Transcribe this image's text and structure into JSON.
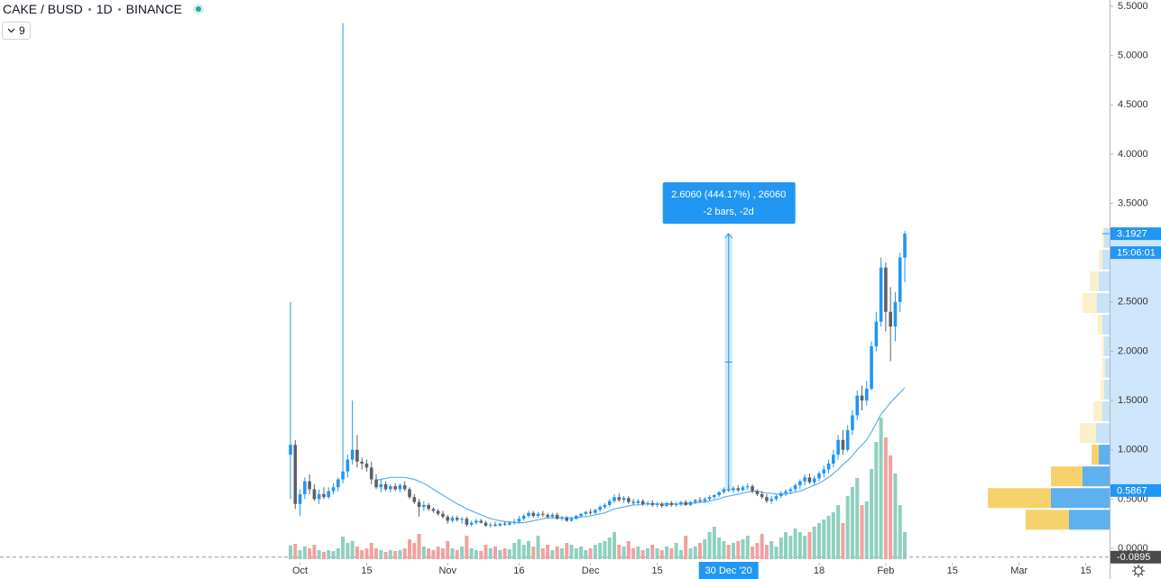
{
  "chart_data": {
    "type": "candlestick",
    "header": {
      "symbol": "CAKE / BUSD",
      "interval": "1D",
      "exchange": "BINANCE"
    },
    "indicator": {
      "name": "9",
      "color": "#5eb0ef"
    },
    "xlim": [
      "2020-07-30",
      "2021-03-20"
    ],
    "ylim": [
      0,
      5.5
    ],
    "yticks": [
      {
        "value": 0,
        "label": "0.0000"
      },
      {
        "value": 0.5,
        "label": "0.5000"
      },
      {
        "value": 1,
        "label": "1.0000"
      },
      {
        "value": 1.5,
        "label": "1.5000"
      },
      {
        "value": 2,
        "label": "2.0000"
      },
      {
        "value": 2.5,
        "label": "2.5000"
      },
      {
        "value": 3,
        "label": "3.0000"
      },
      {
        "value": 3.5,
        "label": "3.5000"
      },
      {
        "value": 4,
        "label": "4.0000"
      },
      {
        "value": 4.5,
        "label": "4.5000"
      },
      {
        "value": 5,
        "label": "5.0000"
      },
      {
        "value": 5.5,
        "label": "5.5000"
      }
    ],
    "xticks": [
      {
        "value": "2020-10-01",
        "label": "Oct"
      },
      {
        "value": "2020-10-15",
        "label": "15"
      },
      {
        "value": "2020-11-01",
        "label": "Nov"
      },
      {
        "value": "2020-11-16",
        "label": "16"
      },
      {
        "value": "2020-12-01",
        "label": "Dec"
      },
      {
        "value": "2020-12-15",
        "label": "15"
      },
      {
        "value": "2021-01-18",
        "label": "18"
      },
      {
        "value": "2021-02-01",
        "label": "Feb"
      },
      {
        "value": "2021-02-15",
        "label": "15"
      },
      {
        "value": "2021-03-01",
        "label": "Mar"
      },
      {
        "value": "2021-03-15",
        "label": "15"
      }
    ],
    "up_color": "#2196f3",
    "down_color": "#5d606b",
    "volume_up_color": "#8ed0bf",
    "volume_down_color": "#f1a1a0",
    "x": [
      "2020-09-29",
      "2020-09-30",
      "2020-10-01",
      "2020-10-02",
      "2020-10-03",
      "2020-10-04",
      "2020-10-05",
      "2020-10-06",
      "2020-10-07",
      "2020-10-08",
      "2020-10-09",
      "2020-10-10",
      "2020-10-11",
      "2020-10-12",
      "2020-10-13",
      "2020-10-14",
      "2020-10-15",
      "2020-10-16",
      "2020-10-17",
      "2020-10-18",
      "2020-10-19",
      "2020-10-20",
      "2020-10-21",
      "2020-10-22",
      "2020-10-23",
      "2020-10-24",
      "2020-10-25",
      "2020-10-26",
      "2020-10-27",
      "2020-10-28",
      "2020-10-29",
      "2020-10-30",
      "2020-10-31",
      "2020-11-01",
      "2020-11-02",
      "2020-11-03",
      "2020-11-04",
      "2020-11-05",
      "2020-11-06",
      "2020-11-07",
      "2020-11-08",
      "2020-11-09",
      "2020-11-10",
      "2020-11-11",
      "2020-11-12",
      "2020-11-13",
      "2020-11-14",
      "2020-11-15",
      "2020-11-16",
      "2020-11-17",
      "2020-11-18",
      "2020-11-19",
      "2020-11-20",
      "2020-11-21",
      "2020-11-22",
      "2020-11-23",
      "2020-11-24",
      "2020-11-25",
      "2020-11-26",
      "2020-11-27",
      "2020-11-28",
      "2020-11-29",
      "2020-11-30",
      "2020-12-01",
      "2020-12-02",
      "2020-12-03",
      "2020-12-04",
      "2020-12-05",
      "2020-12-06",
      "2020-12-07",
      "2020-12-08",
      "2020-12-09",
      "2020-12-10",
      "2020-12-11",
      "2020-12-12",
      "2020-12-13",
      "2020-12-14",
      "2020-12-15",
      "2020-12-16",
      "2020-12-17",
      "2020-12-18",
      "2020-12-19",
      "2020-12-20",
      "2020-12-21",
      "2020-12-22",
      "2020-12-23",
      "2020-12-24",
      "2020-12-25",
      "2020-12-26",
      "2020-12-27",
      "2020-12-28",
      "2020-12-29",
      "2020-12-30",
      "2020-12-31",
      "2021-01-01",
      "2021-01-02",
      "2021-01-03",
      "2021-01-04",
      "2021-01-05",
      "2021-01-06",
      "2021-01-07",
      "2021-01-08",
      "2021-01-09",
      "2021-01-10",
      "2021-01-11",
      "2021-01-12",
      "2021-01-13",
      "2021-01-14",
      "2021-01-15",
      "2021-01-16",
      "2021-01-17",
      "2021-01-18",
      "2021-01-19",
      "2021-01-20",
      "2021-01-21",
      "2021-01-22",
      "2021-01-23",
      "2021-01-24",
      "2021-01-25",
      "2021-01-26",
      "2021-01-27",
      "2021-01-28",
      "2021-01-29",
      "2021-01-30",
      "2021-01-31",
      "2021-02-01",
      "2021-02-02",
      "2021-02-03",
      "2021-02-04",
      "2021-02-05"
    ],
    "ohlc": [
      [
        0.95,
        2.5,
        0.5,
        1.05
      ],
      [
        1.05,
        1.1,
        0.4,
        0.45
      ],
      [
        0.45,
        0.6,
        0.33,
        0.55
      ],
      [
        0.55,
        0.72,
        0.5,
        0.68
      ],
      [
        0.68,
        0.75,
        0.55,
        0.6
      ],
      [
        0.6,
        0.65,
        0.48,
        0.5
      ],
      [
        0.5,
        0.6,
        0.45,
        0.55
      ],
      [
        0.55,
        0.62,
        0.5,
        0.52
      ],
      [
        0.52,
        0.62,
        0.5,
        0.58
      ],
      [
        0.58,
        0.66,
        0.55,
        0.62
      ],
      [
        0.62,
        0.72,
        0.58,
        0.7
      ],
      [
        0.7,
        5.33,
        0.66,
        0.78
      ],
      [
        0.78,
        0.95,
        0.72,
        0.9
      ],
      [
        0.9,
        1.5,
        0.85,
        1.0
      ],
      [
        1.0,
        1.15,
        0.82,
        0.88
      ],
      [
        0.88,
        0.92,
        0.8,
        0.86
      ],
      [
        0.86,
        0.9,
        0.78,
        0.82
      ],
      [
        0.82,
        0.88,
        0.65,
        0.7
      ],
      [
        0.7,
        0.75,
        0.6,
        0.62
      ],
      [
        0.62,
        0.7,
        0.57,
        0.65
      ],
      [
        0.65,
        0.68,
        0.58,
        0.6
      ],
      [
        0.6,
        0.65,
        0.57,
        0.63
      ],
      [
        0.63,
        0.66,
        0.58,
        0.6
      ],
      [
        0.6,
        0.66,
        0.57,
        0.64
      ],
      [
        0.64,
        0.68,
        0.58,
        0.6
      ],
      [
        0.6,
        0.62,
        0.5,
        0.52
      ],
      [
        0.52,
        0.55,
        0.45,
        0.47
      ],
      [
        0.47,
        0.5,
        0.32,
        0.42
      ],
      [
        0.42,
        0.48,
        0.38,
        0.44
      ],
      [
        0.44,
        0.46,
        0.38,
        0.4
      ],
      [
        0.4,
        0.42,
        0.36,
        0.38
      ],
      [
        0.38,
        0.4,
        0.33,
        0.35
      ],
      [
        0.35,
        0.38,
        0.3,
        0.32
      ],
      [
        0.32,
        0.34,
        0.25,
        0.28
      ],
      [
        0.28,
        0.33,
        0.26,
        0.31
      ],
      [
        0.31,
        0.33,
        0.27,
        0.29
      ],
      [
        0.29,
        0.32,
        0.25,
        0.3
      ],
      [
        0.3,
        0.32,
        0.22,
        0.24
      ],
      [
        0.24,
        0.28,
        0.22,
        0.26
      ],
      [
        0.26,
        0.3,
        0.24,
        0.28
      ],
      [
        0.28,
        0.3,
        0.25,
        0.26
      ],
      [
        0.26,
        0.28,
        0.22,
        0.23
      ],
      [
        0.23,
        0.26,
        0.21,
        0.24
      ],
      [
        0.24,
        0.27,
        0.22,
        0.23
      ],
      [
        0.23,
        0.26,
        0.22,
        0.25
      ],
      [
        0.25,
        0.27,
        0.23,
        0.24
      ],
      [
        0.24,
        0.27,
        0.23,
        0.26
      ],
      [
        0.26,
        0.3,
        0.24,
        0.27
      ],
      [
        0.27,
        0.33,
        0.25,
        0.3
      ],
      [
        0.3,
        0.35,
        0.28,
        0.33
      ],
      [
        0.33,
        0.38,
        0.31,
        0.36
      ],
      [
        0.36,
        0.38,
        0.31,
        0.33
      ],
      [
        0.33,
        0.37,
        0.31,
        0.35
      ],
      [
        0.35,
        0.38,
        0.32,
        0.34
      ],
      [
        0.34,
        0.36,
        0.3,
        0.32
      ],
      [
        0.32,
        0.36,
        0.3,
        0.34
      ],
      [
        0.34,
        0.36,
        0.29,
        0.3
      ],
      [
        0.3,
        0.33,
        0.28,
        0.31
      ],
      [
        0.31,
        0.33,
        0.27,
        0.28
      ],
      [
        0.28,
        0.32,
        0.27,
        0.3
      ],
      [
        0.3,
        0.34,
        0.29,
        0.33
      ],
      [
        0.33,
        0.36,
        0.31,
        0.35
      ],
      [
        0.35,
        0.38,
        0.33,
        0.37
      ],
      [
        0.37,
        0.4,
        0.34,
        0.36
      ],
      [
        0.36,
        0.4,
        0.35,
        0.39
      ],
      [
        0.39,
        0.44,
        0.37,
        0.42
      ],
      [
        0.42,
        0.46,
        0.4,
        0.44
      ],
      [
        0.44,
        0.5,
        0.42,
        0.48
      ],
      [
        0.48,
        0.55,
        0.46,
        0.52
      ],
      [
        0.52,
        0.56,
        0.47,
        0.49
      ],
      [
        0.49,
        0.53,
        0.46,
        0.51
      ],
      [
        0.51,
        0.53,
        0.45,
        0.47
      ],
      [
        0.47,
        0.5,
        0.44,
        0.46
      ],
      [
        0.46,
        0.5,
        0.44,
        0.48
      ],
      [
        0.48,
        0.5,
        0.43,
        0.45
      ],
      [
        0.45,
        0.48,
        0.43,
        0.46
      ],
      [
        0.46,
        0.49,
        0.42,
        0.44
      ],
      [
        0.44,
        0.47,
        0.42,
        0.45
      ],
      [
        0.45,
        0.47,
        0.41,
        0.43
      ],
      [
        0.43,
        0.47,
        0.42,
        0.46
      ],
      [
        0.46,
        0.48,
        0.42,
        0.44
      ],
      [
        0.44,
        0.47,
        0.42,
        0.45
      ],
      [
        0.45,
        0.48,
        0.43,
        0.47
      ],
      [
        0.47,
        0.49,
        0.43,
        0.44
      ],
      [
        0.44,
        0.48,
        0.43,
        0.47
      ],
      [
        0.47,
        0.5,
        0.45,
        0.49
      ],
      [
        0.49,
        0.52,
        0.46,
        0.48
      ],
      [
        0.48,
        0.52,
        0.46,
        0.5
      ],
      [
        0.5,
        0.54,
        0.48,
        0.52
      ],
      [
        0.52,
        0.55,
        0.5,
        0.54
      ],
      [
        0.54,
        0.58,
        0.52,
        0.57
      ],
      [
        0.57,
        0.62,
        0.55,
        0.6
      ],
      [
        0.6,
        0.64,
        0.57,
        0.59
      ],
      [
        0.59,
        0.63,
        0.56,
        0.61
      ],
      [
        0.61,
        0.64,
        0.57,
        0.59
      ],
      [
        0.59,
        0.64,
        0.58,
        0.62
      ],
      [
        0.62,
        0.66,
        0.59,
        0.63
      ],
      [
        0.63,
        0.65,
        0.56,
        0.58
      ],
      [
        0.58,
        0.6,
        0.53,
        0.55
      ],
      [
        0.55,
        0.58,
        0.5,
        0.52
      ],
      [
        0.52,
        0.55,
        0.46,
        0.48
      ],
      [
        0.48,
        0.53,
        0.45,
        0.5
      ],
      [
        0.5,
        0.55,
        0.48,
        0.53
      ],
      [
        0.53,
        0.58,
        0.51,
        0.56
      ],
      [
        0.56,
        0.6,
        0.53,
        0.58
      ],
      [
        0.58,
        0.62,
        0.55,
        0.6
      ],
      [
        0.6,
        0.66,
        0.57,
        0.64
      ],
      [
        0.64,
        0.7,
        0.6,
        0.68
      ],
      [
        0.68,
        0.75,
        0.64,
        0.72
      ],
      [
        0.72,
        0.76,
        0.65,
        0.67
      ],
      [
        0.67,
        0.74,
        0.64,
        0.71
      ],
      [
        0.71,
        0.78,
        0.68,
        0.76
      ],
      [
        0.76,
        0.84,
        0.72,
        0.8
      ],
      [
        0.8,
        0.9,
        0.76,
        0.86
      ],
      [
        0.86,
        1.0,
        0.82,
        0.95
      ],
      [
        0.95,
        1.15,
        0.9,
        1.1
      ],
      [
        1.1,
        1.2,
        0.95,
        1.0
      ],
      [
        1.0,
        1.25,
        0.98,
        1.2
      ],
      [
        1.2,
        1.4,
        1.15,
        1.35
      ],
      [
        1.35,
        1.6,
        1.3,
        1.55
      ],
      [
        1.55,
        1.65,
        1.4,
        1.5
      ],
      [
        1.5,
        1.7,
        1.45,
        1.62
      ],
      [
        1.62,
        2.1,
        1.6,
        2.05
      ],
      [
        2.05,
        2.4,
        2.0,
        2.3
      ],
      [
        2.3,
        2.95,
        2.25,
        2.85
      ],
      [
        2.85,
        2.9,
        2.2,
        2.4
      ],
      [
        2.4,
        2.65,
        1.9,
        2.25
      ],
      [
        2.25,
        2.6,
        2.1,
        2.5
      ],
      [
        2.5,
        3.0,
        2.4,
        2.95
      ],
      [
        2.95,
        3.22,
        2.7,
        3.1927
      ]
    ],
    "volume_ylim": [
      0,
      160
    ],
    "volume": [
      15,
      17,
      10,
      14,
      12,
      16,
      10,
      8,
      10,
      9,
      12,
      25,
      18,
      20,
      14,
      10,
      12,
      18,
      12,
      10,
      8,
      10,
      9,
      10,
      12,
      22,
      18,
      28,
      14,
      12,
      10,
      14,
      12,
      20,
      12,
      10,
      14,
      26,
      12,
      10,
      9,
      16,
      12,
      14,
      10,
      12,
      11,
      18,
      22,
      16,
      20,
      14,
      26,
      12,
      16,
      10,
      14,
      12,
      18,
      16,
      12,
      14,
      10,
      12,
      16,
      18,
      20,
      24,
      30,
      16,
      14,
      20,
      12,
      14,
      10,
      12,
      16,
      12,
      10,
      14,
      12,
      18,
      10,
      26,
      12,
      14,
      18,
      22,
      30,
      36,
      24,
      20,
      16,
      18,
      20,
      22,
      26,
      14,
      18,
      28,
      16,
      20,
      14,
      24,
      30,
      26,
      34,
      30,
      26,
      30,
      36,
      40,
      44,
      48,
      52,
      60,
      40,
      70,
      80,
      90,
      60,
      64,
      100,
      130,
      157,
      135,
      115,
      95,
      60,
      30
    ],
    "ma": [
      null,
      null,
      null,
      null,
      null,
      null,
      null,
      null,
      null,
      null,
      null,
      null,
      null,
      null,
      null,
      null,
      null,
      null,
      0.69,
      0.7,
      0.71,
      0.72,
      0.72,
      0.72,
      0.72,
      0.71,
      0.7,
      0.68,
      0.66,
      0.63,
      0.6,
      0.57,
      0.54,
      0.51,
      0.48,
      0.45,
      0.43,
      0.4,
      0.38,
      0.36,
      0.34,
      0.32,
      0.3,
      0.29,
      0.28,
      0.27,
      0.27,
      0.26,
      0.26,
      0.26,
      0.27,
      0.28,
      0.29,
      0.3,
      0.31,
      0.31,
      0.31,
      0.31,
      0.31,
      0.31,
      0.31,
      0.32,
      0.32,
      0.33,
      0.34,
      0.35,
      0.36,
      0.38,
      0.4,
      0.41,
      0.42,
      0.43,
      0.44,
      0.44,
      0.45,
      0.45,
      0.45,
      0.45,
      0.45,
      0.45,
      0.45,
      0.45,
      0.45,
      0.45,
      0.46,
      0.46,
      0.47,
      0.47,
      0.48,
      0.49,
      0.5,
      0.52,
      0.53,
      0.54,
      0.55,
      0.56,
      0.57,
      0.58,
      0.58,
      0.57,
      0.56,
      0.56,
      0.55,
      0.55,
      0.55,
      0.56,
      0.57,
      0.58,
      0.6,
      0.62,
      0.64,
      0.66,
      0.69,
      0.72,
      0.76,
      0.8,
      0.85,
      0.89,
      0.94,
      1.0,
      1.05,
      1.1,
      1.18,
      1.27,
      1.36,
      1.42,
      1.48,
      1.53,
      1.58,
      1.63
    ],
    "volume_profile": {
      "up_color": "#5eb0ef",
      "down_color": "#f7d16b",
      "xlim": [
        0,
        135
      ],
      "value_area": [
        0.18,
        1.06
      ],
      "rows": [
        [
          0.18,
          0.4,
          45,
          48
        ],
        [
          0.4,
          0.62,
          65,
          70
        ],
        [
          0.62,
          0.84,
          30,
          35
        ],
        [
          0.84,
          1.06,
          12,
          8
        ],
        [
          1.06,
          1.28,
          15,
          18
        ],
        [
          1.28,
          1.5,
          8,
          10
        ],
        [
          1.5,
          1.72,
          6,
          4
        ],
        [
          1.72,
          1.94,
          5,
          3
        ],
        [
          1.94,
          2.16,
          6,
          2
        ],
        [
          2.16,
          2.38,
          8,
          5
        ],
        [
          2.38,
          2.6,
          14,
          16
        ],
        [
          2.6,
          2.82,
          12,
          10
        ],
        [
          2.82,
          3.04,
          8,
          4
        ],
        [
          3.04,
          3.26,
          6,
          2
        ]
      ]
    },
    "measure": {
      "date": "2020-12-30",
      "from": 0.5867,
      "to": 3.1927,
      "label_1": "2.6060 (444.17%) , 26060",
      "label_2": "-2 bars, -2d"
    },
    "last_price": 3.1927,
    "countdown": "15:06:01",
    "crosshair_price": -0.0895,
    "crosshair_date": {
      "value": "2020-12-30",
      "label": "30 Dec '20"
    }
  }
}
